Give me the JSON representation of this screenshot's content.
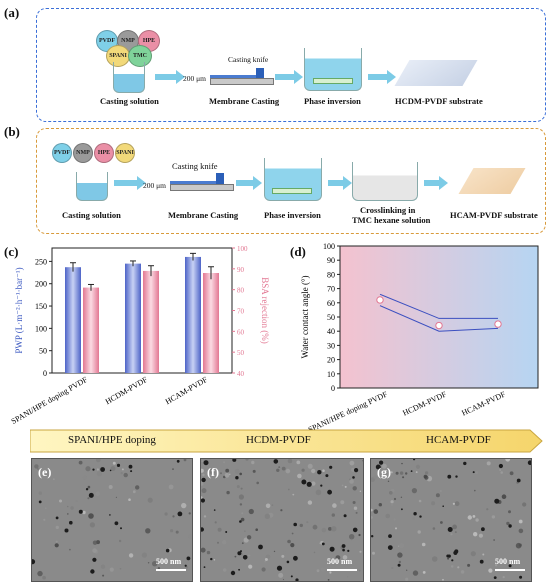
{
  "panel_a": {
    "label": "(a)",
    "balls": [
      "PVDF",
      "NMP",
      "HPE",
      "SPANI",
      "TMC"
    ],
    "steps": [
      "Casting solution",
      "Membrane Casting",
      "Phase inversion",
      "HCDM-PVDF substrate"
    ],
    "knife_label": "Casting knife",
    "gap_label": "200 μm"
  },
  "panel_b": {
    "label": "(b)",
    "balls": [
      "PVDF",
      "NMP",
      "HPE",
      "SPANI"
    ],
    "steps": [
      "Casting solution",
      "Membrane Casting",
      "Phase inversion",
      "Crosslinking in",
      "TMC hexane solution",
      "HCAM-PVDF substrate"
    ],
    "knife_label": "Casting knife",
    "gap_label": "200 μm"
  },
  "panel_c": {
    "label": "(c)"
  },
  "panel_d": {
    "label": "(d)"
  },
  "chart_data": [
    {
      "type": "bar",
      "categories": [
        "SPANI/HPE doping PVDF",
        "HCDM-PVDF",
        "HCAM-PVDF"
      ],
      "ylabel": "PWP (L·m⁻²·h⁻¹·bar⁻¹)",
      "y2label": "BSA rejection (%)",
      "ylim": [
        0,
        280
      ],
      "y2lim": [
        40,
        100
      ],
      "yticks": [
        0,
        50,
        100,
        150,
        200,
        250
      ],
      "y2ticks": [
        40,
        50,
        60,
        70,
        80,
        90,
        100
      ],
      "series": [
        {
          "values": [
            237,
            245,
            260
          ],
          "errors": [
            10,
            6,
            8
          ],
          "color": "#7b8fd6"
        },
        {
          "values": [
            81,
            89,
            88
          ],
          "errors": [
            1.5,
            2.5,
            3
          ],
          "color": "#f0a6b8",
          "axis": "right"
        }
      ]
    },
    {
      "type": "scatter",
      "categories": [
        "SPANI/HPE doping PVDF",
        "HCDM-PVDF",
        "HCAM-PVDF"
      ],
      "ylabel": "Water contact angle (°)",
      "ylim": [
        0,
        100
      ],
      "yticks": [
        0,
        10,
        20,
        30,
        40,
        50,
        60,
        70,
        80,
        90,
        100
      ],
      "values": [
        62,
        44,
        45
      ],
      "band_upper": [
        66,
        49,
        49
      ],
      "band_lower": [
        58,
        40,
        42
      ]
    }
  ],
  "banner": {
    "labels": [
      "SPANI/HPE doping",
      "HCDM-PVDF",
      "HCAM-PVDF"
    ]
  },
  "sem": [
    {
      "label": "(e)",
      "scale": "500 nm"
    },
    {
      "label": "(f)",
      "scale": "500 nm"
    },
    {
      "label": "(g)",
      "scale": "500 nm"
    }
  ],
  "colors": {
    "panel_a_border": "#3b6fd8",
    "panel_b_border": "#d89a3b",
    "arrow": "#7ccbe6"
  }
}
